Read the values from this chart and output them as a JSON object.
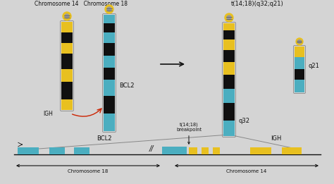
{
  "bg_color": "#d4d4d4",
  "title_left": "Chromosome 14   Chromosome 18",
  "title_right": "t(14;18)(q32;q21)",
  "arrow_label": "t(14;18)\nbreakpoint",
  "chr14_label": "Chromosome 14",
  "chr18_label": "Chromosome 18",
  "bcl2_label": "BCL2",
  "q21_label": "q21",
  "q32_label": "q32",
  "igh_label": "IGH",
  "teal": "#4BAEC0",
  "yellow": "#E8C020",
  "black": "#101010",
  "red": "#CC2200"
}
